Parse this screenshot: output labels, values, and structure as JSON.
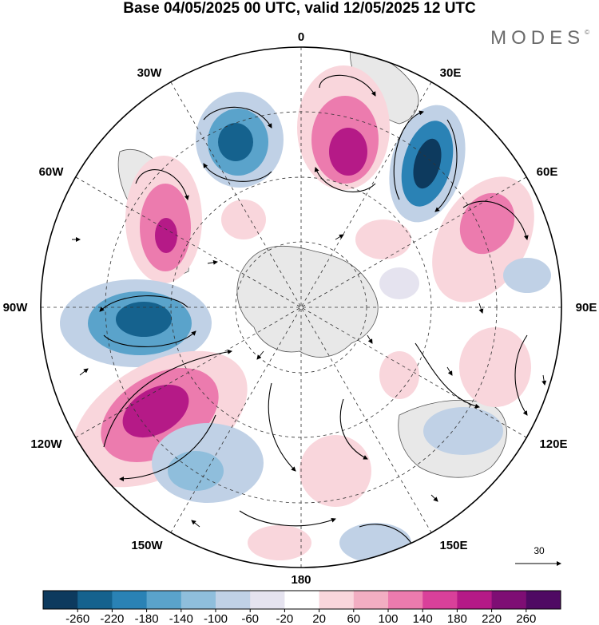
{
  "title": "Base 04/05/2025 00 UTC, valid 12/05/2025 12 UTC",
  "brand": "MODES",
  "brand_mark": "©",
  "longitude_labels": [
    {
      "text": "0",
      "id": "0"
    },
    {
      "text": "30E",
      "id": "30e"
    },
    {
      "text": "60E",
      "id": "60e"
    },
    {
      "text": "90E",
      "id": "90e"
    },
    {
      "text": "120E",
      "id": "120e"
    },
    {
      "text": "150E",
      "id": "150e"
    },
    {
      "text": "180",
      "id": "180"
    },
    {
      "text": "150W",
      "id": "150w"
    },
    {
      "text": "120W",
      "id": "120w"
    },
    {
      "text": "90W",
      "id": "90w"
    },
    {
      "text": "60W",
      "id": "60w"
    },
    {
      "text": "30W",
      "id": "30w"
    }
  ],
  "vector_scale": {
    "label": "30",
    "icon": "arrow-right-icon"
  },
  "colorbar": {
    "ticks": [
      "-260",
      "-220",
      "-180",
      "-140",
      "-100",
      "-60",
      "-20",
      "20",
      "60",
      "100",
      "140",
      "180",
      "220",
      "260"
    ],
    "colors": [
      "#0d3a5e",
      "#15628e",
      "#2a82b5",
      "#5aa3cb",
      "#8fbedc",
      "#c0d1e6",
      "#e5e3ef",
      "#ffffff",
      "#f9d6dc",
      "#f2aec2",
      "#ec7bae",
      "#d9409a",
      "#b51a87",
      "#7e0e74",
      "#4f0a63"
    ]
  },
  "field_colors": {
    "negative_strong": "#15628e",
    "negative_medium": "#5aa3cb",
    "negative_weak": "#c0d1e6",
    "positive_weak": "#f9d6dc",
    "positive_medium": "#ec7bae",
    "positive_strong": "#b51a87",
    "land": "#e8e8e8"
  }
}
